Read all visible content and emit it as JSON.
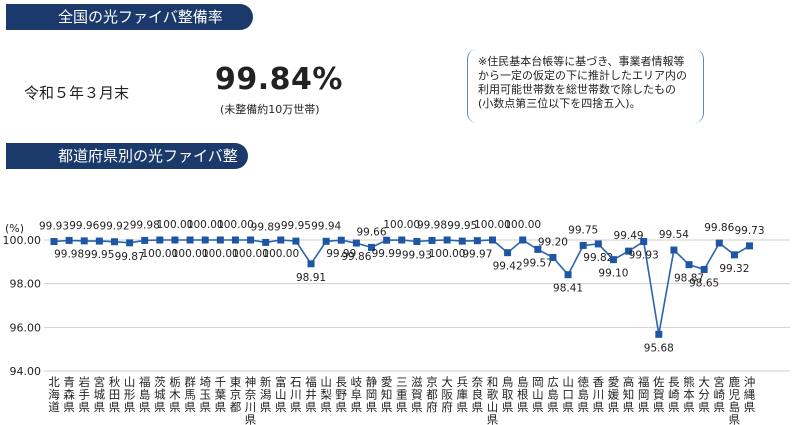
{
  "national": {
    "banner": "全国の光ファイバ整備率",
    "date": "令和５年３月末",
    "rate": "99.84%",
    "sub": "(未整備約10万世帯)",
    "note": "※住民基本台帳等に基づき、事業者情報等\nから一定の仮定の下に推計したエリア内の\n利用可能世帯数を総世帯数で除したもの\n(小数点第三位以下を四捨五入)。"
  },
  "prefecture_banner": "都道府県別の光ファイバ整備率",
  "colors": {
    "banner": "#1b3a6b",
    "line": "#2a64ad",
    "marker": "#1f56a3",
    "grid": "#cfcfcf"
  },
  "chart_data": {
    "type": "line",
    "unit_label": "(%)",
    "ylim": [
      94.0,
      100.0
    ],
    "y_ticks": [
      "94.00",
      "96.00",
      "98.00",
      "100.00"
    ],
    "grid": true,
    "categories": [
      "北海道",
      "青森県",
      "岩手県",
      "宮城県",
      "秋田県",
      "山形県",
      "福島県",
      "茨城県",
      "栃木県",
      "群馬県",
      "埼玉県",
      "千葉県",
      "東京都",
      "神奈川県",
      "新潟県",
      "富山県",
      "石川県",
      "福井県",
      "山梨県",
      "長野県",
      "岐阜県",
      "静岡県",
      "愛知県",
      "三重県",
      "滋賀県",
      "京都府",
      "大阪府",
      "兵庫県",
      "奈良県",
      "和歌山県",
      "鳥取県",
      "島根県",
      "岡山県",
      "広島県",
      "山口県",
      "徳島県",
      "香川県",
      "愛媛県",
      "高知県",
      "福岡県",
      "佐賀県",
      "長崎県",
      "熊本県",
      "大分県",
      "宮崎県",
      "鹿児島県",
      "沖縄県"
    ],
    "values": [
      99.93,
      99.98,
      99.96,
      99.95,
      99.92,
      99.87,
      99.98,
      100.0,
      100.0,
      100.0,
      100.0,
      100.0,
      100.0,
      100.0,
      99.89,
      100.0,
      99.95,
      98.91,
      99.94,
      99.99,
      99.86,
      99.66,
      99.99,
      100.0,
      99.93,
      99.98,
      100.0,
      99.95,
      99.97,
      100.0,
      99.42,
      100.0,
      99.57,
      99.2,
      98.41,
      99.75,
      99.82,
      99.1,
      99.49,
      99.93,
      95.68,
      99.54,
      98.87,
      98.65,
      99.86,
      99.32,
      99.73
    ],
    "value_labels": [
      "99.93",
      "99.98",
      "99.96",
      "99.95",
      "99.92",
      "99.87",
      "99.98",
      "100.00",
      "100.00",
      "100.00",
      "100.00",
      "100.00",
      "100.00",
      "100.00",
      "99.89",
      "100.00",
      "99.95",
      "98.91",
      "99.94",
      "99.99",
      "99.86",
      "99.66",
      "99.99",
      "100.00",
      "99.93",
      "99.98",
      "100.00",
      "99.95",
      "99.97",
      "100.00",
      "99.42",
      "100.00",
      "99.57",
      "99.20",
      "98.41",
      "99.75",
      "99.82",
      "99.10",
      "99.49",
      "99.93",
      "95.68",
      "99.54",
      "98.87",
      "98.65",
      "99.86",
      "99.32",
      "99.73"
    ],
    "label_side": [
      "a",
      "b",
      "a",
      "b",
      "a",
      "b",
      "a",
      "b",
      "a",
      "b",
      "a",
      "b",
      "a",
      "b",
      "a",
      "b",
      "a",
      "b",
      "a",
      "b",
      "b",
      "a",
      "b",
      "a",
      "b",
      "a",
      "b",
      "a",
      "b",
      "a",
      "b",
      "a",
      "b",
      "a",
      "b",
      "a",
      "b",
      "b",
      "a",
      "b",
      "b",
      "a",
      "b",
      "b",
      "a",
      "b",
      "a"
    ]
  }
}
